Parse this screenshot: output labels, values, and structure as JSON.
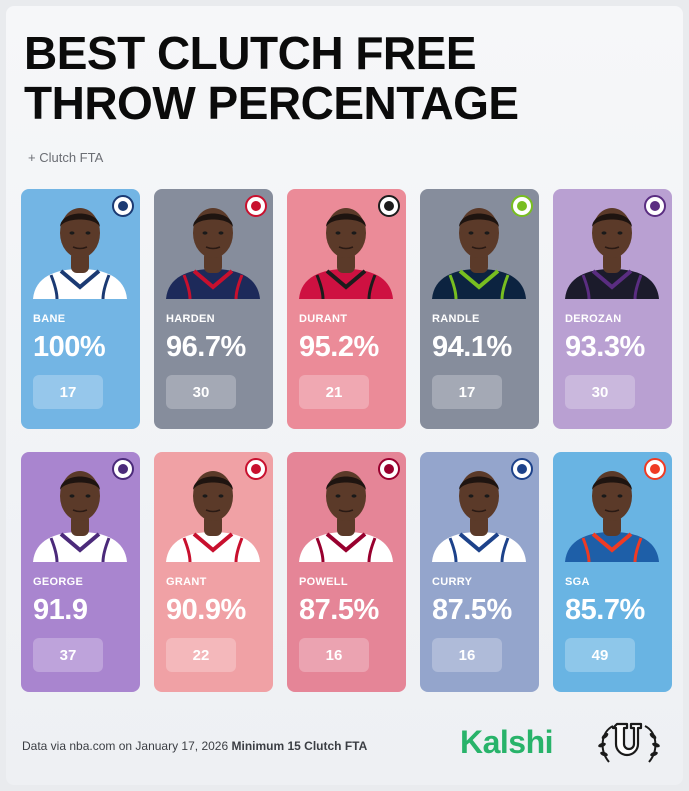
{
  "header": {
    "title": "BEST CLUTCH FREE THROW PERCENTAGE",
    "subtitle": "+ Clutch FTA"
  },
  "players": [
    {
      "name": "BANE",
      "pct": "100%",
      "fta": "17",
      "team_icon": "magic-logo-icon",
      "card_color": "#73b5e4",
      "jersey_color": "#ffffff",
      "trim_color": "#1b3a73"
    },
    {
      "name": "HARDEN",
      "pct": "96.7%",
      "fta": "30",
      "team_icon": "clippers-logo-icon",
      "card_color": "#868d9c",
      "jersey_color": "#1d2a5a",
      "trim_color": "#c8102e"
    },
    {
      "name": "DURANT",
      "pct": "95.2%",
      "fta": "21",
      "team_icon": "rockets-logo-icon",
      "card_color": "#eb8b98",
      "jersey_color": "#ce1141",
      "trim_color": "#1c1c1c"
    },
    {
      "name": "RANDLE",
      "pct": "94.1%",
      "fta": "17",
      "team_icon": "timberwolves-logo-icon",
      "card_color": "#868d9c",
      "jersey_color": "#0c2340",
      "trim_color": "#78be20"
    },
    {
      "name": "DEROZAN",
      "pct": "93.3%",
      "fta": "30",
      "team_icon": "kings-logo-icon",
      "card_color": "#b9a0d2",
      "jersey_color": "#1b1b2b",
      "trim_color": "#5a2d81"
    },
    {
      "name": "GEORGE",
      "pct": "91.9",
      "fta": "37",
      "team_icon": "jazz-logo-icon",
      "card_color": "#a985cf",
      "jersey_color": "#ffffff",
      "trim_color": "#4b2a7a"
    },
    {
      "name": "GRANT",
      "pct": "90.9%",
      "fta": "22",
      "team_icon": "blazers-logo-icon",
      "card_color": "#f0a1a5",
      "jersey_color": "#ffffff",
      "trim_color": "#c8102e"
    },
    {
      "name": "POWELL",
      "pct": "87.5%",
      "fta": "16",
      "team_icon": "heat-logo-icon",
      "card_color": "#e58597",
      "jersey_color": "#ffffff",
      "trim_color": "#98002e"
    },
    {
      "name": "CURRY",
      "pct": "87.5%",
      "fta": "16",
      "team_icon": "warriors-logo-icon",
      "card_color": "#94a5cc",
      "jersey_color": "#ffffff",
      "trim_color": "#1d428a"
    },
    {
      "name": "SGA",
      "pct": "85.7%",
      "fta": "49",
      "team_icon": "thunder-logo-icon",
      "card_color": "#69b4e3",
      "jersey_color": "#1e5fa8",
      "trim_color": "#ef3b24"
    }
  ],
  "footer": {
    "source": "Data via nba.com on January 17, 2026",
    "note": "Minimum 15 Clutch FTA",
    "brand": "Kalshi",
    "brand_color": "#28b36a",
    "partner_icon": "u-laurel-logo-icon"
  }
}
